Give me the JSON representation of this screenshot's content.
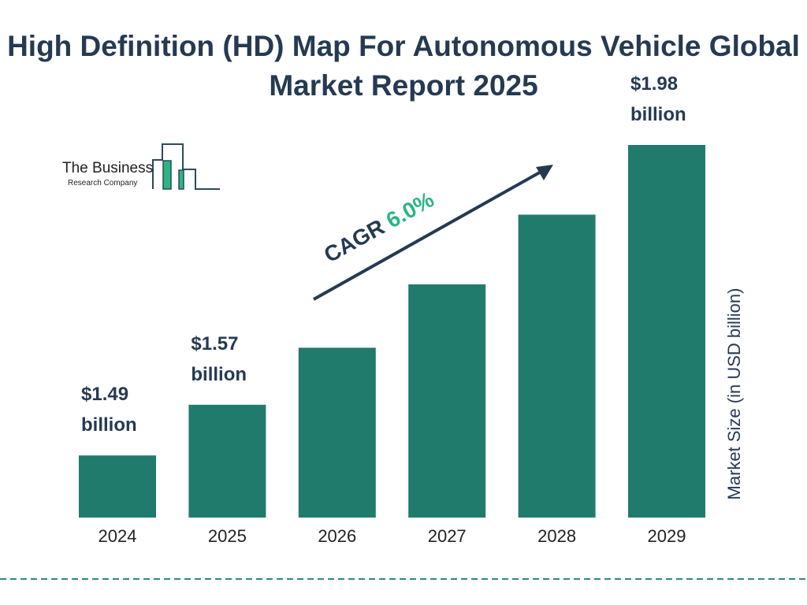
{
  "chart_data": {
    "type": "bar",
    "title": "High Definition (HD) Map For Autonomous Vehicle Global Market Report 2025",
    "xlabel": "",
    "ylabel": "Market Size (in USD billion)",
    "categories": [
      "2024",
      "2025",
      "2026",
      "2027",
      "2028",
      "2029"
    ],
    "values": [
      1.49,
      1.57,
      1.66,
      1.76,
      1.87,
      1.98
    ],
    "data_labels": [
      {
        "category": "2024",
        "line1": "$1.49",
        "line2": "billion"
      },
      {
        "category": "2025",
        "line1": "$1.57",
        "line2": "billion"
      },
      {
        "category": "2029",
        "line1": "$1.98",
        "line2": "billion"
      }
    ],
    "annotation": {
      "label": "CAGR",
      "value": "6.0%"
    },
    "grid": false,
    "bar_color": "#217b6c",
    "text_color": "#253a52",
    "accent_color": "#2bb583"
  },
  "logo": {
    "line1": "The Business",
    "line2": "Research Company"
  }
}
